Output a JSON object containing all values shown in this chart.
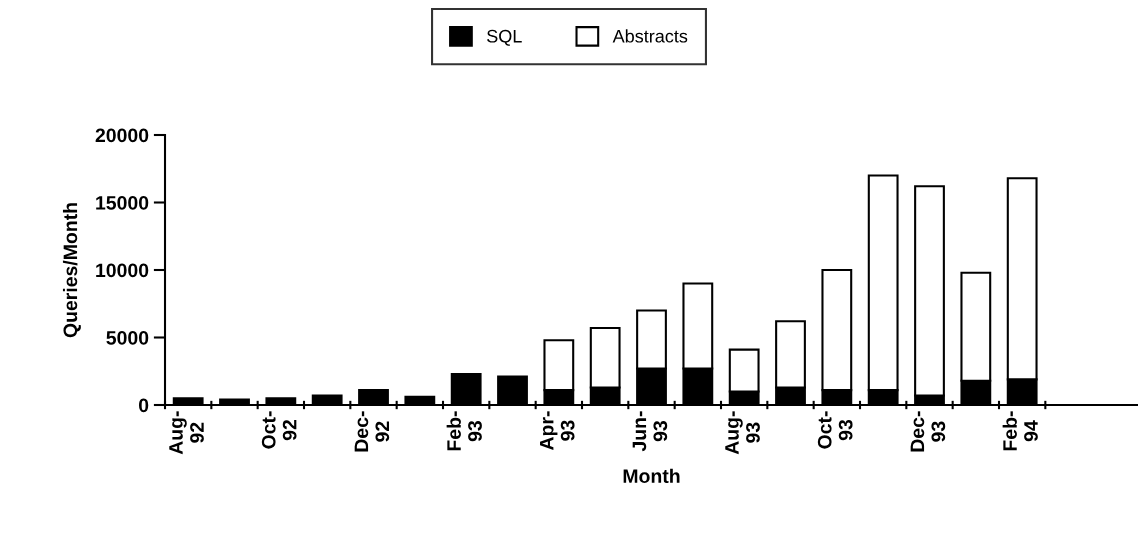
{
  "chart_data": {
    "type": "bar",
    "stacked": true,
    "xlabel": "Month",
    "ylabel": "Queries/Month",
    "categories": [
      "Aug-\n92",
      null,
      "Oct-\n92",
      null,
      "Dec-\n92",
      null,
      "Feb-\n93",
      null,
      "Apr-\n93",
      null,
      "Jun-\n93",
      null,
      "Aug-\n93",
      null,
      "Oct-\n93",
      null,
      "Dec-\n93",
      null,
      "Feb-\n94"
    ],
    "series": [
      {
        "name": "SQL",
        "color": "#000000",
        "values": [
          500,
          400,
          500,
          700,
          1100,
          600,
          2300,
          2100,
          1100,
          1300,
          2700,
          2700,
          1000,
          1300,
          1100,
          1100,
          700,
          1800,
          1900
        ]
      },
      {
        "name": "Abstracts",
        "color": "#ffffff",
        "values": [
          null,
          null,
          null,
          null,
          null,
          null,
          null,
          null,
          3700,
          4400,
          4300,
          6300,
          3100,
          4900,
          8900,
          15900,
          15500,
          8000,
          14900
        ]
      }
    ],
    "ylim": [
      0,
      20000
    ],
    "yticks": [
      0,
      5000,
      10000,
      15000,
      20000
    ],
    "grid": false,
    "legend": "top"
  }
}
